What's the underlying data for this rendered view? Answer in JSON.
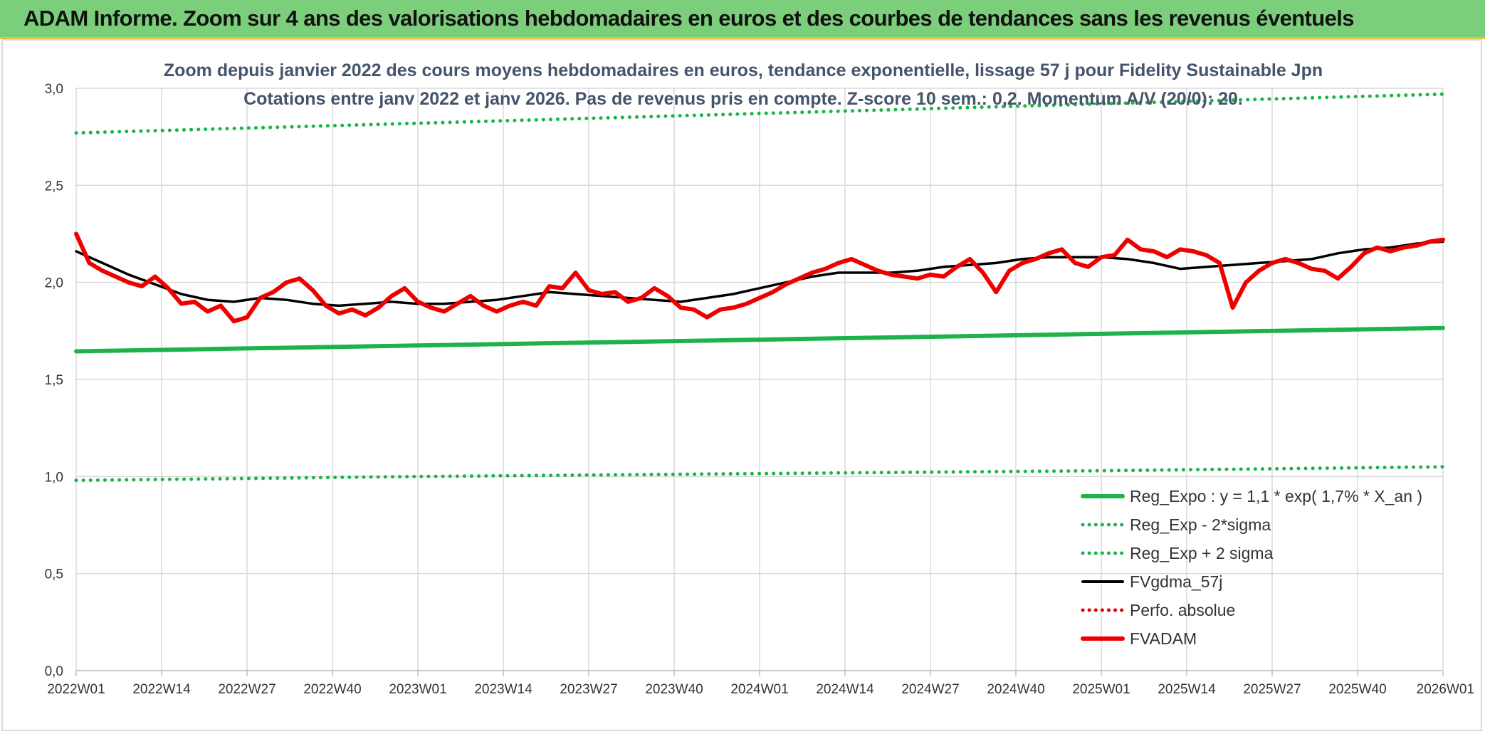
{
  "banner": {
    "title": "ADAM Informe. Zoom sur 4 ans des valorisations hebdomadaires en euros et des courbes de tendances sans les revenus éventuels"
  },
  "chart_data": {
    "type": "line",
    "title": "Zoom depuis janvier 2022 des cours moyens hebdomadaires en euros, tendance exponentielle, lissage 57 j pour Fidelity Sustainable Jpn",
    "subtitle": "Cotations entre janv 2022 et janv 2026. Pas de revenus pris en compte. Z-score 10 sem.: 0,2. Momentum A/V (20/0): 20.",
    "xlabel": "",
    "ylabel": "",
    "ylim": [
      0,
      3
    ],
    "yticks": [
      "0,0",
      "0,5",
      "1,0",
      "1,5",
      "2,0",
      "2,5",
      "3,0"
    ],
    "xticks": [
      "2022W01",
      "2022W14",
      "2022W27",
      "2022W40",
      "2023W01",
      "2023W14",
      "2023W27",
      "2023W40",
      "2024W01",
      "2024W14",
      "2024W27",
      "2024W40",
      "2025W01",
      "2025W14",
      "2025W27",
      "2025W40",
      "2026W01"
    ],
    "grid": true,
    "legend_position": "bottom-right",
    "series": [
      {
        "name": "Reg_Expo : y = 1,1 * exp( 1,7% *  X_an )",
        "style": "solid",
        "color": "#1db34a",
        "x": [
          0,
          52,
          104,
          156,
          208
        ],
        "y": [
          1.645,
          1.675,
          1.705,
          1.735,
          1.765
        ]
      },
      {
        "name": "Reg_Exp - 2*sigma",
        "style": "dotted",
        "color": "#1db34a",
        "x": [
          0,
          52,
          104,
          156,
          208
        ],
        "y": [
          0.98,
          1.0,
          1.015,
          1.03,
          1.05
        ]
      },
      {
        "name": "Reg_Exp + 2 sigma",
        "style": "dotted",
        "color": "#1db34a",
        "x": [
          0,
          52,
          104,
          156,
          208
        ],
        "y": [
          2.77,
          2.82,
          2.87,
          2.92,
          2.97
        ]
      },
      {
        "name": "FVgdma_57j",
        "style": "solid",
        "color": "#000000",
        "x": [
          0,
          4,
          8,
          12,
          16,
          20,
          24,
          28,
          32,
          36,
          40,
          44,
          48,
          52,
          56,
          60,
          64,
          68,
          72,
          76,
          80,
          84,
          88,
          92,
          96,
          100,
          104,
          108,
          112,
          116,
          120,
          124,
          128,
          132,
          136,
          140,
          144,
          148,
          152,
          156,
          160,
          164,
          168,
          172,
          176,
          180,
          184,
          188,
          192,
          196,
          200,
          204,
          208
        ],
        "y": [
          2.16,
          2.1,
          2.04,
          1.99,
          1.94,
          1.91,
          1.9,
          1.92,
          1.91,
          1.89,
          1.88,
          1.89,
          1.9,
          1.89,
          1.89,
          1.9,
          1.91,
          1.93,
          1.95,
          1.94,
          1.93,
          1.92,
          1.91,
          1.9,
          1.92,
          1.94,
          1.97,
          2.0,
          2.03,
          2.05,
          2.05,
          2.05,
          2.06,
          2.08,
          2.09,
          2.1,
          2.12,
          2.13,
          2.13,
          2.13,
          2.12,
          2.1,
          2.07,
          2.08,
          2.09,
          2.1,
          2.11,
          2.12,
          2.15,
          2.17,
          2.18,
          2.2,
          2.21
        ]
      },
      {
        "name": "Perfo. absolue",
        "style": "dotted",
        "color": "#e00000",
        "x": [],
        "y": []
      },
      {
        "name": "FVADAM",
        "style": "solid",
        "color": "#ee0000",
        "x": [
          0,
          2,
          4,
          6,
          8,
          10,
          12,
          14,
          16,
          18,
          20,
          22,
          24,
          26,
          28,
          30,
          32,
          34,
          36,
          38,
          40,
          42,
          44,
          46,
          48,
          50,
          52,
          54,
          56,
          58,
          60,
          62,
          64,
          66,
          68,
          70,
          72,
          74,
          76,
          78,
          80,
          82,
          84,
          86,
          88,
          90,
          92,
          94,
          96,
          98,
          100,
          102,
          104,
          106,
          108,
          110,
          112,
          114,
          116,
          118,
          120,
          122,
          124,
          126,
          128,
          130,
          132,
          134,
          136,
          138,
          140,
          142,
          144,
          146,
          148,
          150,
          152,
          154,
          156,
          158,
          160,
          162,
          164,
          166,
          168,
          170,
          172,
          174,
          176,
          178,
          180,
          182,
          184,
          186,
          188,
          190,
          192,
          194,
          196,
          198,
          200,
          202,
          204,
          206,
          208
        ],
        "y": [
          2.25,
          2.1,
          2.06,
          2.03,
          2.0,
          1.98,
          2.03,
          1.97,
          1.89,
          1.9,
          1.85,
          1.88,
          1.8,
          1.82,
          1.92,
          1.95,
          2.0,
          2.02,
          1.96,
          1.88,
          1.84,
          1.86,
          1.83,
          1.87,
          1.93,
          1.97,
          1.9,
          1.87,
          1.85,
          1.89,
          1.93,
          1.88,
          1.85,
          1.88,
          1.9,
          1.88,
          1.98,
          1.97,
          2.05,
          1.96,
          1.94,
          1.95,
          1.9,
          1.92,
          1.97,
          1.93,
          1.87,
          1.86,
          1.82,
          1.86,
          1.87,
          1.89,
          1.92,
          1.95,
          1.99,
          2.02,
          2.05,
          2.07,
          2.1,
          2.12,
          2.09,
          2.06,
          2.04,
          2.03,
          2.02,
          2.04,
          2.03,
          2.08,
          2.12,
          2.05,
          1.95,
          2.06,
          2.1,
          2.12,
          2.15,
          2.17,
          2.1,
          2.08,
          2.13,
          2.14,
          2.22,
          2.17,
          2.16,
          2.13,
          2.17,
          2.16,
          2.14,
          2.1,
          1.87,
          2.0,
          2.06,
          2.1,
          2.12,
          2.1,
          2.07,
          2.06,
          2.02,
          2.08,
          2.15,
          2.18,
          2.16,
          2.18,
          2.19,
          2.21,
          2.22
        ]
      }
    ]
  }
}
